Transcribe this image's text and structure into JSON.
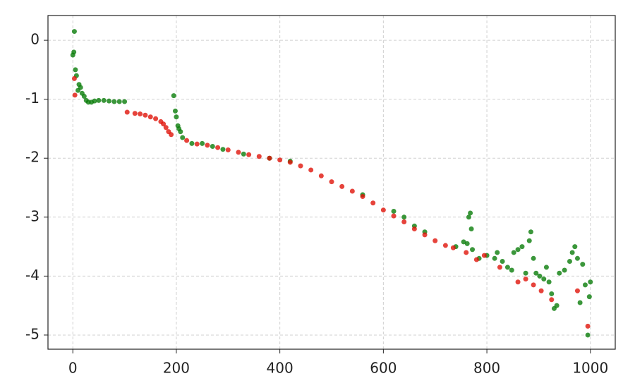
{
  "chart_data": {
    "type": "scatter",
    "xlim": [
      -48,
      1048
    ],
    "ylim": [
      -5.24,
      0.42
    ],
    "xticks": [
      0,
      200,
      400,
      600,
      800,
      1000
    ],
    "yticks": [
      0,
      -1,
      -2,
      -3,
      -4,
      -5
    ],
    "grid": true,
    "series": [
      {
        "color": "#0a7d0a",
        "x": [
          0,
          2,
          3,
          5,
          7,
          10,
          12,
          15,
          18,
          22,
          26,
          30,
          36,
          42,
          50,
          60,
          70,
          80,
          90,
          100,
          195,
          198,
          200,
          203,
          205,
          208,
          212,
          230,
          250,
          270,
          290,
          330,
          380,
          420,
          560,
          620,
          640,
          660,
          680,
          740,
          755,
          762,
          765,
          768,
          770,
          772,
          785,
          800,
          815,
          820,
          830,
          840,
          848,
          852,
          860,
          868,
          875,
          882,
          885,
          890,
          895,
          902,
          910,
          915,
          920,
          925,
          930,
          935,
          940,
          950,
          960,
          965,
          970,
          975,
          980,
          985,
          990,
          995,
          998,
          1000
        ],
        "values": [
          -0.25,
          -0.2,
          0.15,
          -0.5,
          -0.6,
          -0.85,
          -0.75,
          -0.8,
          -0.9,
          -0.95,
          -1.02,
          -1.05,
          -1.05,
          -1.03,
          -1.02,
          -1.02,
          -1.03,
          -1.04,
          -1.04,
          -1.04,
          -0.94,
          -1.2,
          -1.3,
          -1.45,
          -1.5,
          -1.55,
          -1.65,
          -1.75,
          -1.75,
          -1.8,
          -1.85,
          -1.93,
          -2.0,
          -2.05,
          -2.62,
          -2.9,
          -3.0,
          -3.15,
          -3.25,
          -3.5,
          -3.42,
          -3.45,
          -3.0,
          -2.93,
          -3.2,
          -3.55,
          -3.7,
          -3.65,
          -3.7,
          -3.6,
          -3.75,
          -3.85,
          -3.9,
          -3.6,
          -3.55,
          -3.5,
          -3.95,
          -3.4,
          -3.25,
          -3.7,
          -3.95,
          -4.0,
          -4.05,
          -3.85,
          -4.1,
          -4.3,
          -4.55,
          -4.5,
          -3.95,
          -3.9,
          -3.75,
          -3.6,
          -3.5,
          -3.7,
          -4.45,
          -3.8,
          -4.15,
          -5.0,
          -4.35,
          -4.1
        ]
      },
      {
        "color": "#e0140a",
        "x": [
          3,
          4,
          105,
          120,
          130,
          140,
          150,
          160,
          170,
          175,
          180,
          185,
          190,
          220,
          240,
          260,
          280,
          300,
          320,
          340,
          360,
          380,
          400,
          420,
          440,
          460,
          480,
          500,
          520,
          540,
          560,
          580,
          600,
          620,
          640,
          660,
          680,
          700,
          720,
          735,
          760,
          780,
          795,
          825,
          860,
          875,
          890,
          905,
          925,
          975,
          995
        ],
        "values": [
          -0.65,
          -0.93,
          -1.22,
          -1.24,
          -1.25,
          -1.27,
          -1.3,
          -1.33,
          -1.38,
          -1.42,
          -1.48,
          -1.55,
          -1.6,
          -1.7,
          -1.76,
          -1.78,
          -1.82,
          -1.86,
          -1.9,
          -1.94,
          -1.97,
          -2.0,
          -2.03,
          -2.07,
          -2.13,
          -2.2,
          -2.3,
          -2.4,
          -2.48,
          -2.56,
          -2.65,
          -2.76,
          -2.88,
          -2.98,
          -3.08,
          -3.2,
          -3.3,
          -3.4,
          -3.48,
          -3.52,
          -3.6,
          -3.72,
          -3.65,
          -3.85,
          -4.1,
          -4.05,
          -4.15,
          -4.25,
          -4.4,
          -4.25,
          -4.85
        ]
      }
    ]
  }
}
